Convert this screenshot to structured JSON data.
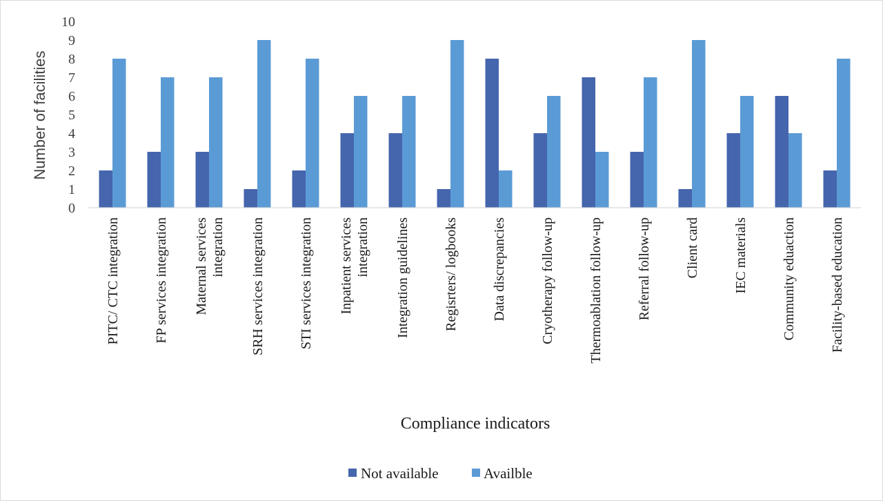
{
  "chart_data": {
    "type": "bar",
    "xlabel": "Compliance indicators",
    "ylabel": "Number of facilities",
    "ylim": [
      0,
      10
    ],
    "yticks": [
      0,
      1,
      2,
      3,
      4,
      5,
      6,
      7,
      8,
      9,
      10
    ],
    "grid": false,
    "legend_position": "bottom",
    "categories": [
      [
        "PITC/ CTC integration"
      ],
      [
        "FP services integration"
      ],
      [
        "Maternal services",
        "integration"
      ],
      [
        "SRH services integration"
      ],
      [
        "STI services integration"
      ],
      [
        "Inpatient services",
        "integration"
      ],
      [
        "Integration guidelines"
      ],
      [
        "Regisrters/ logbooks"
      ],
      [
        "Data discrepancies"
      ],
      [
        "Cryotherapy follow-up"
      ],
      [
        "Thermoablation follow-up"
      ],
      [
        "Referral follow-up"
      ],
      [
        "Client card"
      ],
      [
        "IEC materials"
      ],
      [
        "Community eduaction"
      ],
      [
        "Facility-based education"
      ]
    ],
    "series": [
      {
        "name": "Not available",
        "color": "#4565ad",
        "values": [
          2,
          3,
          3,
          1,
          2,
          4,
          4,
          1,
          8,
          4,
          7,
          3,
          1,
          4,
          6,
          2
        ]
      },
      {
        "name": "Availble",
        "color": "#5b9bd5",
        "values": [
          8,
          7,
          7,
          9,
          8,
          6,
          6,
          9,
          2,
          6,
          3,
          7,
          9,
          6,
          4,
          8
        ]
      }
    ]
  }
}
